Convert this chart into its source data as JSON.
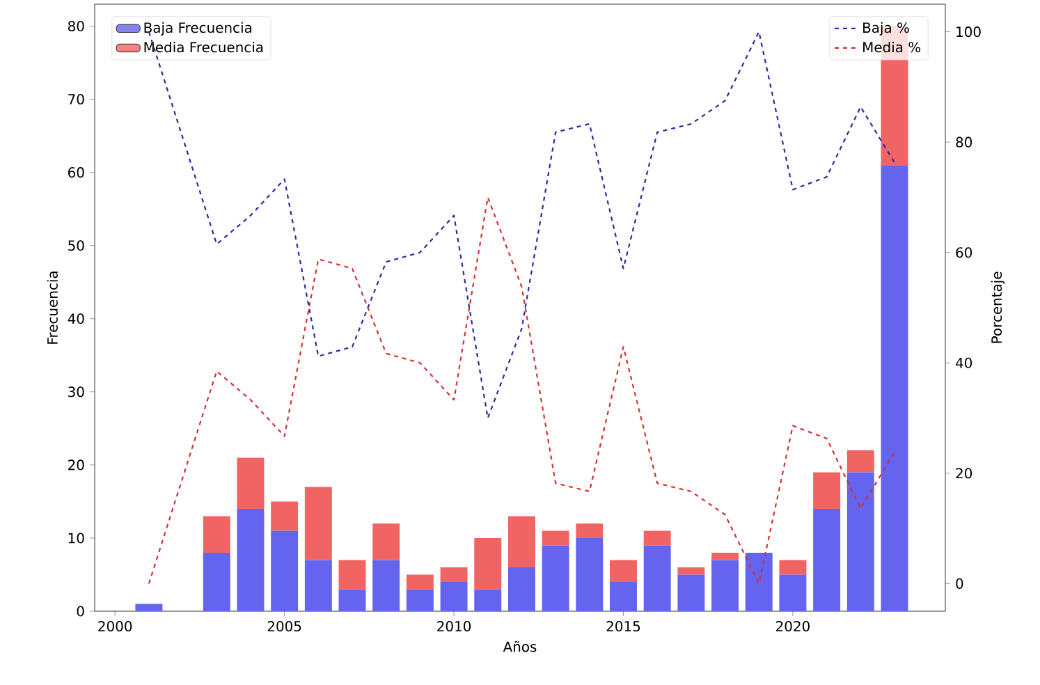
{
  "chart_data": {
    "type": "bar",
    "stacked": true,
    "xlabel": "Años",
    "ylabel": "Frecuencia",
    "y2label": "Porcentaje",
    "x": [
      2001,
      2003,
      2004,
      2005,
      2006,
      2007,
      2008,
      2009,
      2010,
      2011,
      2012,
      2013,
      2014,
      2015,
      2016,
      2017,
      2018,
      2019,
      2020,
      2021,
      2022,
      2023
    ],
    "xlim": [
      1999.4,
      2024.5
    ],
    "xticks": [
      2000,
      2005,
      2010,
      2015,
      2020
    ],
    "ylim": [
      0,
      83
    ],
    "yticks": [
      0,
      10,
      20,
      30,
      40,
      50,
      60,
      70,
      80
    ],
    "y2lim": [
      -5,
      105
    ],
    "y2ticks": [
      0,
      20,
      40,
      60,
      80,
      100
    ],
    "legend": "top left",
    "line_style": "dashed",
    "series": [
      {
        "name": "Baja Frecuencia",
        "color": "#6464ee",
        "values": [
          1,
          8,
          14,
          11,
          7,
          3,
          7,
          3,
          4,
          3,
          6,
          9,
          10,
          4,
          9,
          5,
          7,
          8,
          5,
          14,
          19,
          61
        ]
      },
      {
        "name": "Media Frecuencia",
        "color": "#f06464",
        "values": [
          0,
          5,
          7,
          4,
          10,
          4,
          5,
          2,
          2,
          7,
          7,
          2,
          2,
          3,
          2,
          1,
          1,
          0,
          2,
          5,
          3,
          19
        ]
      },
      {
        "name": "Baja %",
        "type": "line",
        "axis": "y2",
        "color": "#2a2aa0",
        "values": [
          100,
          61.5,
          66.7,
          73.3,
          41.2,
          42.9,
          58.3,
          60,
          66.7,
          30,
          46.2,
          81.8,
          83.3,
          57.1,
          81.8,
          83.3,
          87.5,
          100,
          71.4,
          73.7,
          86.4,
          76.3
        ]
      },
      {
        "name": "Media %",
        "type": "line",
        "axis": "y2",
        "color": "#d43030",
        "values": [
          0,
          38.5,
          33.3,
          26.7,
          58.8,
          57.1,
          41.7,
          40,
          33.3,
          70,
          53.8,
          18.2,
          16.7,
          42.9,
          18.2,
          16.7,
          12.5,
          0,
          28.6,
          26.3,
          13.6,
          23.8
        ]
      }
    ]
  }
}
